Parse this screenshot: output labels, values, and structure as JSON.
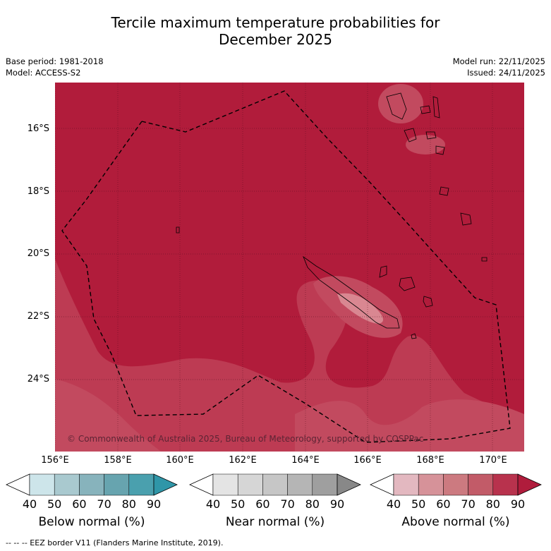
{
  "title": {
    "line1": "Tercile maximum temperature probabilities for",
    "line2": "December 2025"
  },
  "meta_left": {
    "base_period": "Base period: 1981-2018",
    "model": "Model: ACCESS-S2"
  },
  "meta_right": {
    "model_run": "Model run: 22/11/2025",
    "issued": "Issued: 24/11/2025"
  },
  "map": {
    "lat_labels": [
      "16°S",
      "18°S",
      "20°S",
      "22°S",
      "24°S"
    ],
    "lon_labels": [
      "156°E",
      "158°E",
      "160°E",
      "162°E",
      "164°E",
      "166°E",
      "168°E",
      "170°E"
    ],
    "copyright": "© Commonwealth of Australia 2025, Bureau of Meteorology, supported by COSPPac",
    "base_color": "#b11c3b",
    "lighter_color": "#bd3b53"
  },
  "colorbars": [
    {
      "title": "Below normal (%)",
      "ticks": [
        "40",
        "50",
        "60",
        "70",
        "80",
        "90"
      ],
      "colors": [
        "#cde5ea",
        "#a9c9cf",
        "#87b3bc",
        "#67a4af",
        "#4aa0ae",
        "#2f96a8"
      ]
    },
    {
      "title": "Near normal (%)",
      "ticks": [
        "40",
        "50",
        "60",
        "70",
        "80",
        "90"
      ],
      "colors": [
        "#e4e4e4",
        "#d6d6d6",
        "#c6c6c6",
        "#b5b5b5",
        "#9f9f9f",
        "#888888"
      ]
    },
    {
      "title": "Above normal (%)",
      "ticks": [
        "40",
        "50",
        "60",
        "70",
        "80",
        "90"
      ],
      "colors": [
        "#e3b8c0",
        "#d69299",
        "#cc7a80",
        "#c25b68",
        "#b8324d",
        "#b01c3c"
      ]
    }
  ],
  "legend_note": "--  --  -- EEZ border V11 (Flanders Marine Institute, 2019)."
}
